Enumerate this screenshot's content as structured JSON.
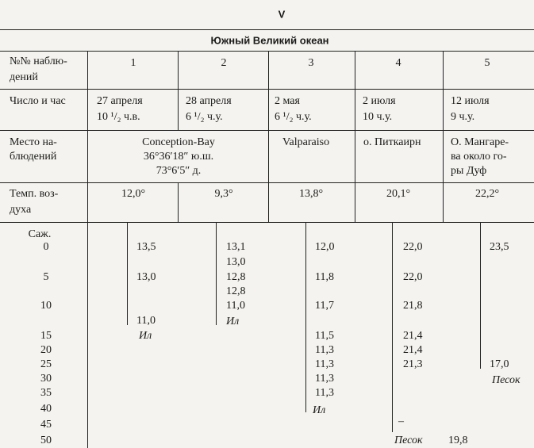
{
  "header": {
    "section_mark": "V",
    "title": "Южный Великий океан"
  },
  "table": {
    "row_labels": [
      [
        "№№ наблю-",
        "дений"
      ],
      [
        "Число и час"
      ],
      [
        "Место на-",
        "блюдений"
      ],
      [
        "Темп. воз-",
        "духа"
      ]
    ],
    "observation_numbers": [
      "1",
      "2",
      "3",
      "4",
      "5"
    ],
    "dates": [
      [
        "27 апреля",
        "10 ¹/₂ ч.в."
      ],
      [
        "28 апреля",
        "6 ¹/₂ ч.у."
      ],
      [
        "2 мая",
        "6 ¹/₂ ч.у."
      ],
      [
        "2 июля",
        "10 ч.у."
      ],
      [
        "12 июля",
        "9 ч.у."
      ]
    ],
    "places": [
      [
        "Conception-Bay",
        "36°36′18″ ю.ш.",
        "73°6′5″ д."
      ],
      [
        "Valparaiso"
      ],
      [
        "о. Питкаирн"
      ],
      [
        "О. Мангаре-",
        "ва около го-",
        "ры Дуф"
      ]
    ],
    "air_temperatures": [
      "12,0°",
      "9,3°",
      "13,8°",
      "20,1°",
      "22,2°"
    ],
    "depth_unit": "Саж.",
    "depths": [
      "0",
      "5",
      "10",
      "15",
      "20",
      "25",
      "30",
      "35",
      "40",
      "45",
      "50"
    ],
    "soundings": [
      [
        "13,5",
        "13,0",
        "11,0",
        "Ил"
      ],
      [
        "13,1",
        "13,0",
        "12,8",
        "12,8",
        "11,0",
        "Ил"
      ],
      [
        "12,0",
        "11,8",
        "11,7",
        "11,5",
        "11,3",
        "11,3",
        "11,3",
        "11,3",
        "Ил"
      ],
      [
        "22,0",
        "22,0",
        "21,8",
        "21,4",
        "21,4",
        "21,3",
        "–",
        "Песок"
      ],
      [
        "23,5",
        "17,0",
        "Песок",
        "19,8"
      ]
    ]
  }
}
